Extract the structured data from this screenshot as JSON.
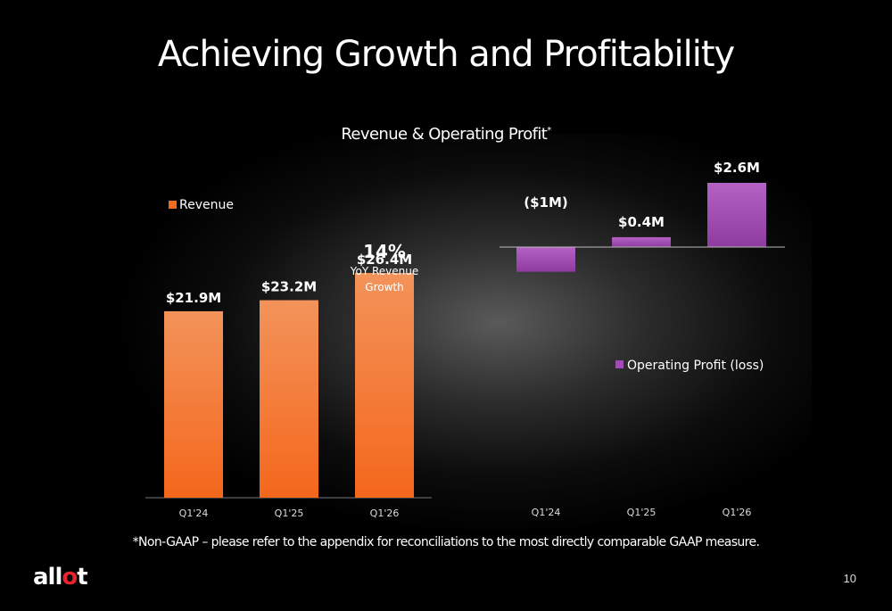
{
  "slide": {
    "title": "Achieving Growth and Profitability",
    "subtitle": "Revenue & Operating Profit",
    "subtitle_mark": "*",
    "footnote": "*Non-GAAP – please refer to the appendix for reconciliations to the most directly comparable GAAP measure.",
    "page_number": "10",
    "logo": {
      "prefix": "all",
      "dot": "o",
      "suffix": "t"
    }
  },
  "colors": {
    "revenue": "#f36a1e",
    "operating_profit": "#a24ab6",
    "logo_accent": "#e8242b"
  },
  "chart_data": [
    {
      "type": "bar",
      "categories": [
        "Q1'24",
        "Q1'25",
        "Q1'26"
      ],
      "series": [
        {
          "name": "Revenue",
          "values": [
            21.9,
            23.2,
            26.4
          ]
        }
      ],
      "data_labels": [
        "$21.9M",
        "$23.2M",
        "$26.4M"
      ],
      "annotation": {
        "value": "14%",
        "text": "YoY Revenue Growth"
      },
      "legend": "top-left",
      "ylim": [
        0,
        30
      ]
    },
    {
      "type": "bar",
      "categories": [
        "Q1'24",
        "Q1'25",
        "Q1'26"
      ],
      "series": [
        {
          "name": "Operating Profit (loss)",
          "values": [
            -1,
            0.4,
            2.6
          ]
        }
      ],
      "data_labels": [
        "($1M)",
        "$0.4M",
        "$2.6M"
      ],
      "legend": "center",
      "ylim": [
        -4,
        2.6
      ]
    }
  ]
}
